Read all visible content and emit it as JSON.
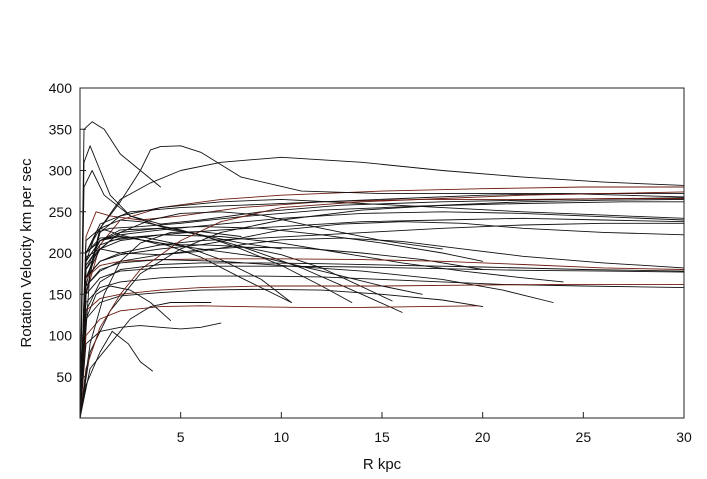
{
  "chart_data": {
    "type": "line",
    "title": "",
    "xlabel": "R  kpc",
    "ylabel": "Rotation Velocity km per sec",
    "xlim": [
      0,
      30
    ],
    "ylim": [
      0,
      400
    ],
    "xticks": [
      5,
      10,
      15,
      20,
      25,
      30
    ],
    "yticks": [
      50,
      100,
      150,
      200,
      250,
      300,
      350,
      400
    ],
    "grid": false,
    "legend": "none",
    "colors": {
      "dark": "#111111",
      "red": "#6b1b12",
      "axis": "#222222"
    },
    "series": [
      {
        "x": [
          0,
          0.3,
          1,
          2,
          4,
          7,
          10,
          15,
          20,
          25,
          30
        ],
        "y": [
          0,
          150,
          210,
          240,
          255,
          265,
          270,
          275,
          278,
          280,
          280
        ],
        "color": "#6b1b12"
      },
      {
        "x": [
          0,
          0.3,
          1,
          2,
          3.5,
          5,
          7,
          10,
          14,
          18,
          22,
          26,
          30
        ],
        "y": [
          0,
          160,
          230,
          265,
          285,
          300,
          310,
          316,
          310,
          300,
          292,
          286,
          282
        ],
        "color": "#111111"
      },
      {
        "x": [
          0,
          0.2,
          0.6,
          1.2,
          2,
          3,
          4
        ],
        "y": [
          0,
          350,
          359,
          350,
          320,
          300,
          280
        ],
        "color": "#111111"
      },
      {
        "x": [
          0,
          0.3,
          1,
          2,
          3,
          3.5,
          4,
          5,
          6,
          8,
          11,
          15,
          20,
          25,
          30
        ],
        "y": [
          0,
          150,
          230,
          262,
          300,
          325,
          329,
          330,
          322,
          292,
          275,
          272,
          272,
          272,
          272
        ],
        "color": "#111111"
      },
      {
        "x": [
          0,
          0.2,
          0.5,
          1,
          1.5,
          2.5,
          4,
          6,
          9,
          13,
          18,
          24,
          30
        ],
        "y": [
          0,
          310,
          330,
          300,
          270,
          245,
          235,
          240,
          250,
          258,
          262,
          265,
          267
        ],
        "color": "#111111"
      },
      {
        "x": [
          0,
          0.3,
          0.8,
          1.5,
          3,
          5,
          8,
          12,
          17,
          22,
          27,
          30
        ],
        "y": [
          0,
          220,
          250,
          245,
          240,
          245,
          255,
          262,
          265,
          265,
          266,
          266
        ],
        "color": "#6b1b12"
      },
      {
        "x": [
          0,
          0.3,
          0.8,
          1.5,
          3,
          5,
          8,
          12,
          17,
          22,
          27,
          30
        ],
        "y": [
          0,
          190,
          225,
          230,
          232,
          236,
          244,
          252,
          257,
          260,
          262,
          262
        ],
        "color": "#111111"
      },
      {
        "x": [
          0,
          0.3,
          1,
          2,
          4,
          7,
          10,
          14,
          18,
          22,
          26,
          30
        ],
        "y": [
          0,
          180,
          215,
          222,
          228,
          235,
          242,
          248,
          250,
          248,
          244,
          240
        ],
        "color": "#111111"
      },
      {
        "x": [
          0,
          0.3,
          1,
          2,
          4,
          7,
          10,
          14,
          18,
          22,
          26,
          30
        ],
        "y": [
          0,
          170,
          205,
          215,
          222,
          228,
          232,
          238,
          240,
          242,
          240,
          238
        ],
        "color": "#111111"
      },
      {
        "x": [
          0,
          0.5,
          1,
          2,
          4,
          7,
          10,
          14,
          18,
          22,
          26,
          30
        ],
        "y": [
          0,
          180,
          225,
          245,
          255,
          262,
          265,
          260,
          255,
          250,
          246,
          242
        ],
        "color": "#111111"
      },
      {
        "x": [
          0,
          0.3,
          1,
          2.5,
          5,
          8,
          12,
          16,
          20,
          24,
          27,
          30
        ],
        "y": [
          0,
          200,
          235,
          250,
          255,
          258,
          262,
          266,
          270,
          272,
          270,
          268
        ],
        "color": "#111111"
      },
      {
        "x": [
          0,
          0.3,
          1,
          2,
          4,
          6,
          9,
          12,
          15,
          18,
          22,
          26,
          30
        ],
        "y": [
          0,
          170,
          190,
          200,
          210,
          215,
          218,
          222,
          226,
          230,
          234,
          236,
          236
        ],
        "color": "#111111"
      },
      {
        "x": [
          0,
          0.2,
          0.6,
          1.2,
          2.5,
          4,
          6,
          8,
          10
        ],
        "y": [
          0,
          280,
          300,
          270,
          245,
          232,
          222,
          212,
          205
        ],
        "color": "#111111"
      },
      {
        "x": [
          0,
          0.3,
          1,
          2,
          4,
          6,
          9,
          12,
          15,
          18,
          20
        ],
        "y": [
          0,
          190,
          215,
          225,
          230,
          232,
          230,
          222,
          212,
          200,
          190
        ],
        "color": "#111111"
      },
      {
        "x": [
          0,
          0.3,
          1,
          2,
          4,
          7,
          10,
          13,
          16,
          19,
          22,
          24
        ],
        "y": [
          0,
          185,
          210,
          218,
          222,
          220,
          212,
          200,
          188,
          178,
          170,
          165
        ],
        "color": "#111111"
      },
      {
        "x": [
          0,
          0.3,
          1,
          2,
          3,
          5,
          8,
          11,
          14,
          16
        ],
        "y": [
          0,
          200,
          230,
          240,
          238,
          228,
          208,
          182,
          150,
          128
        ],
        "color": "#111111"
      },
      {
        "x": [
          0,
          0.3,
          1,
          2,
          4,
          6,
          8,
          10,
          12,
          13.5
        ],
        "y": [
          0,
          190,
          215,
          228,
          230,
          222,
          205,
          185,
          160,
          140
        ],
        "color": "#111111"
      },
      {
        "x": [
          0,
          0.3,
          0.8,
          1.5,
          3,
          5,
          7,
          9,
          10.5
        ],
        "y": [
          0,
          170,
          200,
          215,
          220,
          210,
          192,
          168,
          140
        ],
        "color": "#111111"
      },
      {
        "x": [
          0,
          0.3,
          1,
          2,
          4,
          6,
          8,
          10.5
        ],
        "y": [
          0,
          200,
          215,
          220,
          212,
          195,
          170,
          140
        ],
        "color": "#111111"
      },
      {
        "x": [
          0,
          0.3,
          1,
          2,
          4,
          6,
          8,
          10,
          12,
          15.5
        ],
        "y": [
          0,
          170,
          190,
          198,
          205,
          210,
          208,
          198,
          182,
          142
        ],
        "color": "#111111"
      },
      {
        "x": [
          0,
          0.3,
          1,
          2,
          4,
          6,
          8,
          11,
          14,
          17,
          20
        ],
        "y": [
          0,
          160,
          178,
          190,
          198,
          204,
          207,
          206,
          200,
          192,
          180
        ],
        "color": "#111111"
      },
      {
        "x": [
          0,
          0.3,
          1,
          2,
          4,
          7,
          10,
          14,
          18,
          22,
          26,
          30
        ],
        "y": [
          0,
          170,
          185,
          190,
          192,
          193,
          193,
          192,
          190,
          186,
          182,
          180
        ],
        "color": "#6b1b12"
      },
      {
        "x": [
          0,
          0.3,
          1,
          2,
          4,
          7,
          10,
          14,
          18,
          22,
          26,
          30
        ],
        "y": [
          0,
          150,
          170,
          178,
          182,
          184,
          184,
          183,
          181,
          179,
          178,
          177
        ],
        "color": "#111111"
      },
      {
        "x": [
          0,
          0.3,
          1,
          2,
          4,
          7,
          10,
          14,
          18,
          21,
          23.5
        ],
        "y": [
          0,
          160,
          180,
          188,
          192,
          190,
          185,
          178,
          168,
          155,
          140
        ],
        "color": "#111111"
      },
      {
        "x": [
          0,
          0.3,
          1,
          2,
          4,
          6,
          9,
          12,
          15,
          18,
          21,
          25,
          30
        ],
        "y": [
          0,
          140,
          158,
          165,
          170,
          172,
          172,
          171,
          168,
          165,
          162,
          160,
          158
        ],
        "color": "#111111"
      },
      {
        "x": [
          0,
          0.3,
          1,
          2,
          4,
          6,
          9,
          12,
          15,
          19,
          24,
          30
        ],
        "y": [
          0,
          130,
          145,
          150,
          155,
          158,
          160,
          160,
          160,
          161,
          162,
          162
        ],
        "color": "#6b1b12"
      },
      {
        "x": [
          0,
          0.3,
          1,
          2,
          4,
          6,
          9,
          12,
          15,
          18,
          20
        ],
        "y": [
          0,
          120,
          140,
          148,
          152,
          155,
          156,
          155,
          150,
          143,
          135
        ],
        "color": "#111111"
      },
      {
        "x": [
          0,
          0.3,
          1,
          2,
          4,
          6,
          8,
          11,
          14,
          17,
          19.8
        ],
        "y": [
          0,
          100,
          120,
          130,
          135,
          136,
          135,
          134,
          134,
          135,
          136
        ],
        "color": "#6b1b12"
      },
      {
        "x": [
          0,
          0.3,
          1,
          2,
          3,
          4,
          5,
          6,
          7
        ],
        "y": [
          0,
          90,
          105,
          110,
          112,
          110,
          108,
          110,
          115
        ],
        "color": "#111111"
      },
      {
        "x": [
          0,
          0.3,
          0.8,
          1.5,
          2.5,
          3.5,
          4.5
        ],
        "y": [
          0,
          120,
          150,
          160,
          155,
          140,
          118
        ],
        "color": "#111111"
      },
      {
        "x": [
          0,
          0.3,
          1,
          1.6,
          2.4,
          3,
          3.6
        ],
        "y": [
          0,
          40,
          80,
          105,
          90,
          68,
          57
        ],
        "color": "#111111"
      },
      {
        "x": [
          0,
          0.5,
          1.5,
          2.5,
          3.5,
          4.5,
          6.5
        ],
        "y": [
          0,
          60,
          90,
          120,
          135,
          140,
          140
        ],
        "color": "#111111"
      },
      {
        "x": [
          0,
          0.5,
          1.5,
          3,
          5,
          7,
          10,
          14,
          18,
          22,
          26,
          30
        ],
        "y": [
          0,
          80,
          130,
          175,
          205,
          225,
          240,
          252,
          258,
          262,
          264,
          265
        ],
        "color": "#111111"
      },
      {
        "x": [
          0,
          0.3,
          1,
          2,
          3,
          5,
          7,
          10,
          14,
          18,
          22,
          26,
          30
        ],
        "y": [
          0,
          60,
          110,
          150,
          180,
          215,
          238,
          255,
          262,
          266,
          270,
          272,
          274
        ],
        "color": "#6b1b12"
      },
      {
        "x": [
          0,
          0.5,
          1.2,
          2,
          3,
          4.5,
          6,
          8
        ],
        "y": [
          0,
          90,
          150,
          190,
          212,
          225,
          226,
          220
        ],
        "color": "#111111"
      },
      {
        "x": [
          0,
          0.3,
          1,
          2,
          3.5,
          5,
          7,
          9,
          12,
          15,
          18
        ],
        "y": [
          0,
          180,
          205,
          225,
          240,
          248,
          250,
          246,
          230,
          215,
          205
        ],
        "color": "#111111"
      },
      {
        "x": [
          0,
          0.3,
          1,
          2,
          4,
          6,
          8,
          10,
          13,
          16,
          19,
          22,
          26,
          30
        ],
        "y": [
          0,
          195,
          205,
          200,
          198,
          202,
          210,
          216,
          218,
          214,
          205,
          196,
          188,
          182
        ],
        "color": "#111111"
      },
      {
        "x": [
          0,
          0.3,
          1,
          2,
          4,
          6,
          8,
          10,
          13,
          16,
          19,
          22,
          26,
          30
        ],
        "y": [
          0,
          215,
          230,
          222,
          210,
          210,
          218,
          228,
          235,
          238,
          236,
          230,
          225,
          222
        ],
        "color": "#111111"
      },
      {
        "x": [
          0,
          0.3,
          1,
          2,
          4,
          6,
          9,
          12,
          15,
          17
        ],
        "y": [
          0,
          200,
          218,
          220,
          212,
          205,
          195,
          178,
          160,
          150
        ],
        "color": "#111111"
      },
      {
        "x": [
          0,
          0.3,
          1,
          2,
          4,
          6,
          9,
          12,
          16,
          20,
          25,
          30
        ],
        "y": [
          0,
          130,
          165,
          180,
          186,
          188,
          188,
          187,
          185,
          183,
          180,
          178
        ],
        "color": "#111111"
      }
    ]
  }
}
